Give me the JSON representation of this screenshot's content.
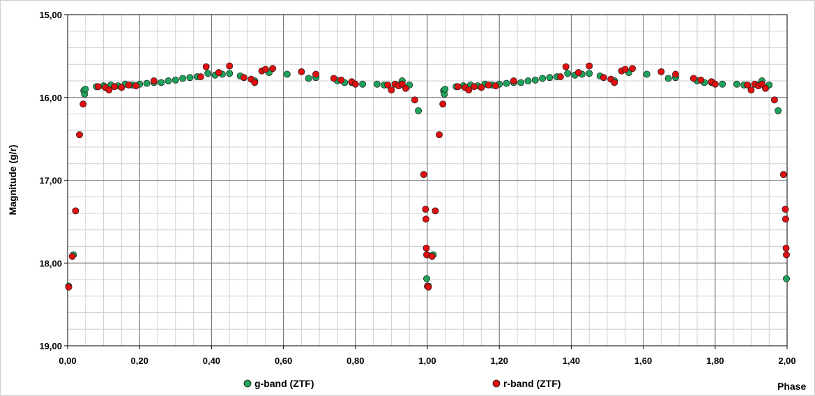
{
  "chart_data": {
    "type": "scatter",
    "xlabel": "Phase",
    "ylabel": "Magnitude (g/r)",
    "xlim": [
      0,
      2
    ],
    "ylim": [
      19,
      15
    ],
    "y_inverted": true,
    "x_ticks": [
      "0,00",
      "0,20",
      "0,40",
      "0,60",
      "0,80",
      "1,00",
      "1,20",
      "1,40",
      "1,60",
      "1,80",
      "2,00"
    ],
    "y_ticks": [
      "15,00",
      "16,00",
      "17,00",
      "18,00",
      "19,00"
    ],
    "grid": true,
    "legend_position": "bottom",
    "series": [
      {
        "name": "g-band (ZTF)",
        "color": "#1fa35c",
        "points": [
          [
            0.003,
            18.28
          ],
          [
            0.016,
            17.9
          ],
          [
            0.045,
            15.92
          ],
          [
            0.047,
            15.96
          ],
          [
            0.049,
            15.9
          ],
          [
            0.08,
            15.87
          ],
          [
            0.1,
            15.86
          ],
          [
            0.12,
            15.85
          ],
          [
            0.14,
            15.86
          ],
          [
            0.16,
            15.84
          ],
          [
            0.18,
            15.85
          ],
          [
            0.2,
            15.84
          ],
          [
            0.22,
            15.83
          ],
          [
            0.24,
            15.82
          ],
          [
            0.26,
            15.82
          ],
          [
            0.28,
            15.8
          ],
          [
            0.3,
            15.79
          ],
          [
            0.32,
            15.77
          ],
          [
            0.34,
            15.76
          ],
          [
            0.36,
            15.75
          ],
          [
            0.39,
            15.71
          ],
          [
            0.41,
            15.73
          ],
          [
            0.43,
            15.72
          ],
          [
            0.45,
            15.71
          ],
          [
            0.48,
            15.74
          ],
          [
            0.52,
            15.8
          ],
          [
            0.56,
            15.7
          ],
          [
            0.61,
            15.72
          ],
          [
            0.67,
            15.77
          ],
          [
            0.69,
            15.76
          ],
          [
            0.75,
            15.8
          ],
          [
            0.77,
            15.82
          ],
          [
            0.79,
            15.82
          ],
          [
            0.82,
            15.84
          ],
          [
            0.86,
            15.84
          ],
          [
            0.88,
            15.85
          ],
          [
            0.92,
            15.85
          ],
          [
            0.93,
            15.8
          ],
          [
            0.95,
            15.85
          ],
          [
            0.975,
            16.16
          ],
          [
            0.998,
            18.19
          ],
          [
            0.999,
            17.9
          ],
          [
            1.003,
            18.28
          ],
          [
            1.016,
            17.9
          ],
          [
            1.045,
            15.92
          ],
          [
            1.047,
            15.96
          ],
          [
            1.049,
            15.9
          ],
          [
            1.08,
            15.87
          ],
          [
            1.1,
            15.86
          ],
          [
            1.12,
            15.85
          ],
          [
            1.14,
            15.86
          ],
          [
            1.16,
            15.84
          ],
          [
            1.18,
            15.85
          ],
          [
            1.2,
            15.84
          ],
          [
            1.22,
            15.83
          ],
          [
            1.24,
            15.82
          ],
          [
            1.26,
            15.82
          ],
          [
            1.28,
            15.8
          ],
          [
            1.3,
            15.79
          ],
          [
            1.32,
            15.77
          ],
          [
            1.34,
            15.76
          ],
          [
            1.36,
            15.75
          ],
          [
            1.39,
            15.71
          ],
          [
            1.41,
            15.73
          ],
          [
            1.43,
            15.72
          ],
          [
            1.45,
            15.71
          ],
          [
            1.48,
            15.74
          ],
          [
            1.52,
            15.8
          ],
          [
            1.56,
            15.7
          ],
          [
            1.61,
            15.72
          ],
          [
            1.67,
            15.77
          ],
          [
            1.69,
            15.76
          ],
          [
            1.75,
            15.8
          ],
          [
            1.77,
            15.82
          ],
          [
            1.79,
            15.82
          ],
          [
            1.82,
            15.84
          ],
          [
            1.86,
            15.84
          ],
          [
            1.88,
            15.85
          ],
          [
            1.92,
            15.85
          ],
          [
            1.93,
            15.8
          ],
          [
            1.95,
            15.85
          ],
          [
            1.975,
            16.16
          ],
          [
            1.998,
            18.19
          ]
        ]
      },
      {
        "name": "r-band (ZTF)",
        "color": "#e01010",
        "points": [
          [
            0.003,
            18.29
          ],
          [
            0.013,
            17.92
          ],
          [
            0.022,
            17.37
          ],
          [
            0.033,
            16.45
          ],
          [
            0.043,
            16.08
          ],
          [
            0.085,
            15.87
          ],
          [
            0.105,
            15.88
          ],
          [
            0.115,
            15.91
          ],
          [
            0.13,
            15.87
          ],
          [
            0.15,
            15.88
          ],
          [
            0.17,
            15.85
          ],
          [
            0.19,
            15.86
          ],
          [
            0.24,
            15.8
          ],
          [
            0.37,
            15.75
          ],
          [
            0.385,
            15.63
          ],
          [
            0.42,
            15.7
          ],
          [
            0.45,
            15.62
          ],
          [
            0.49,
            15.76
          ],
          [
            0.51,
            15.78
          ],
          [
            0.52,
            15.82
          ],
          [
            0.54,
            15.68
          ],
          [
            0.55,
            15.66
          ],
          [
            0.57,
            15.65
          ],
          [
            0.65,
            15.69
          ],
          [
            0.69,
            15.72
          ],
          [
            0.74,
            15.77
          ],
          [
            0.76,
            15.79
          ],
          [
            0.79,
            15.81
          ],
          [
            0.8,
            15.84
          ],
          [
            0.89,
            15.85
          ],
          [
            0.9,
            15.91
          ],
          [
            0.91,
            15.84
          ],
          [
            0.92,
            15.86
          ],
          [
            0.93,
            15.84
          ],
          [
            0.94,
            15.89
          ],
          [
            0.965,
            16.03
          ],
          [
            0.99,
            16.93
          ],
          [
            0.995,
            17.35
          ],
          [
            0.996,
            17.47
          ],
          [
            0.997,
            17.82
          ],
          [
            0.998,
            17.9
          ],
          [
            1.0,
            18.28
          ],
          [
            1.003,
            18.29
          ],
          [
            1.013,
            17.92
          ],
          [
            1.022,
            17.37
          ],
          [
            1.033,
            16.45
          ],
          [
            1.043,
            16.08
          ],
          [
            1.085,
            15.87
          ],
          [
            1.105,
            15.88
          ],
          [
            1.115,
            15.91
          ],
          [
            1.13,
            15.87
          ],
          [
            1.15,
            15.88
          ],
          [
            1.17,
            15.85
          ],
          [
            1.19,
            15.86
          ],
          [
            1.24,
            15.8
          ],
          [
            1.37,
            15.75
          ],
          [
            1.385,
            15.63
          ],
          [
            1.42,
            15.7
          ],
          [
            1.45,
            15.62
          ],
          [
            1.49,
            15.76
          ],
          [
            1.51,
            15.78
          ],
          [
            1.52,
            15.82
          ],
          [
            1.54,
            15.68
          ],
          [
            1.55,
            15.66
          ],
          [
            1.57,
            15.65
          ],
          [
            1.65,
            15.69
          ],
          [
            1.69,
            15.72
          ],
          [
            1.74,
            15.77
          ],
          [
            1.76,
            15.79
          ],
          [
            1.79,
            15.81
          ],
          [
            1.8,
            15.84
          ],
          [
            1.89,
            15.85
          ],
          [
            1.9,
            15.91
          ],
          [
            1.91,
            15.84
          ],
          [
            1.92,
            15.86
          ],
          [
            1.93,
            15.84
          ],
          [
            1.94,
            15.89
          ],
          [
            1.965,
            16.03
          ],
          [
            1.99,
            16.93
          ],
          [
            1.995,
            17.35
          ],
          [
            1.996,
            17.47
          ],
          [
            1.997,
            17.82
          ],
          [
            1.998,
            17.9
          ]
        ]
      }
    ]
  }
}
